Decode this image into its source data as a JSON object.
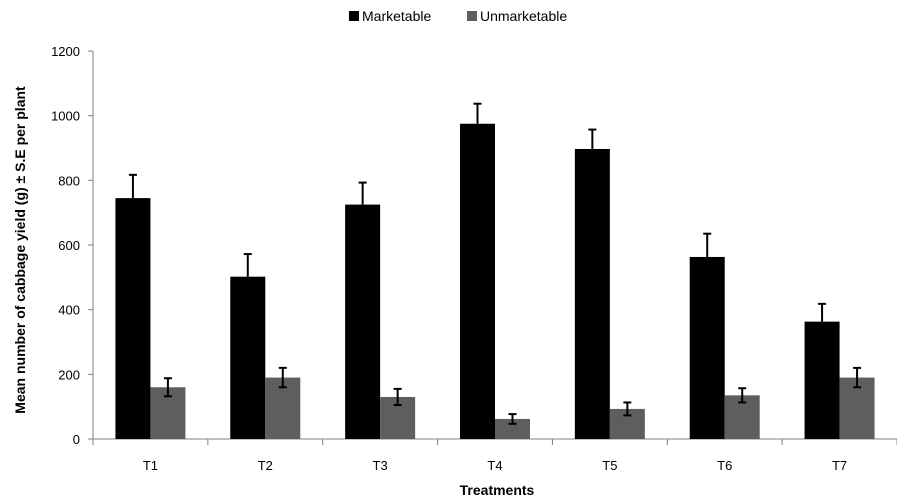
{
  "chart_data": {
    "type": "bar",
    "categories": [
      "T1",
      "T2",
      "T3",
      "T4",
      "T5",
      "T6",
      "T7"
    ],
    "series": [
      {
        "name": "Marketable",
        "color": "#000000",
        "values": [
          745,
          502,
          725,
          975,
          897,
          563,
          363
        ],
        "errors": [
          72,
          70,
          68,
          62,
          60,
          72,
          55
        ]
      },
      {
        "name": "Unmarketable",
        "color": "#5e5e5e",
        "values": [
          160,
          190,
          130,
          62,
          93,
          135,
          190
        ],
        "errors": [
          28,
          30,
          25,
          15,
          20,
          22,
          30
        ]
      }
    ],
    "xlabel": "Treatments",
    "ylabel": "Mean number of cabbage yield (g) ± S.E per plant",
    "ylim": [
      0,
      1200
    ],
    "yticks": [
      "0",
      "200",
      "400",
      "600",
      "800",
      "1000",
      "1200"
    ],
    "grid": false,
    "legend_position": "top"
  }
}
